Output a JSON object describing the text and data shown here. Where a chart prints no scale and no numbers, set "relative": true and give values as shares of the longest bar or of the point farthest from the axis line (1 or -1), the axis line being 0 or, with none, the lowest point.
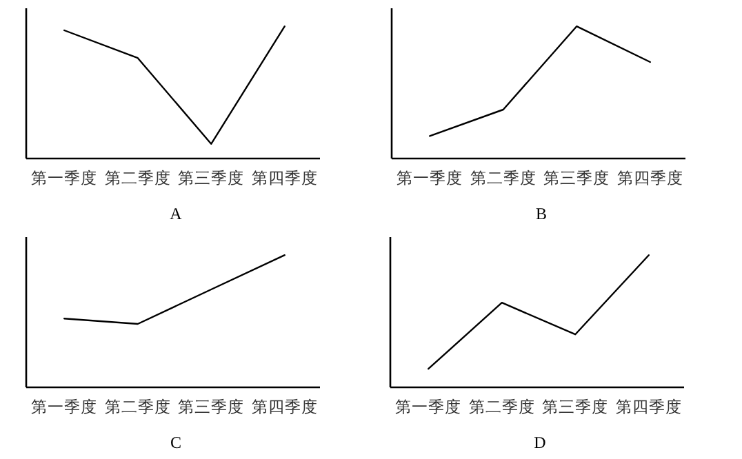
{
  "chart_data": [
    {
      "type": "line",
      "relative": true,
      "xlabel": "A",
      "categories": [
        "第一季度",
        "第二季度",
        "第三季度",
        "第四季度"
      ],
      "series": [
        {
          "color": "#000000",
          "values": [
            0.97,
            0.76,
            0.11,
            1
          ]
        }
      ]
    },
    {
      "type": "line",
      "relative": true,
      "xlabel": "B",
      "categories": [
        "第一季度",
        "第二季度",
        "第三季度",
        "第四季度"
      ],
      "series": [
        {
          "color": "#000000",
          "values": [
            0.17,
            0.37,
            1,
            0.73
          ]
        }
      ]
    },
    {
      "type": "line",
      "relative": true,
      "xlabel": "C",
      "categories": [
        "第一季度",
        "第二季度",
        "第三季度",
        "第四季度"
      ],
      "series": [
        {
          "color": "#000000",
          "values": [
            0.52,
            0.48,
            0.74,
            1
          ]
        }
      ]
    },
    {
      "type": "line",
      "relative": true,
      "xlabel": "D",
      "categories": [
        "第一季度",
        "第二季度",
        "第三季度",
        "第四季度"
      ],
      "series": [
        {
          "color": "#000000",
          "values": [
            0.14,
            0.64,
            0.4,
            1
          ]
        }
      ]
    }
  ]
}
